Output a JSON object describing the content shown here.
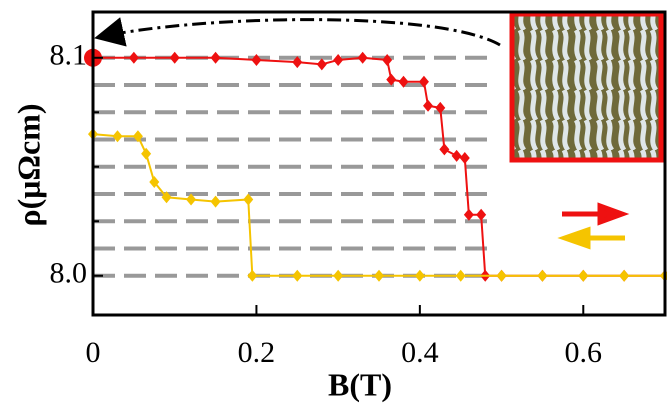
{
  "chart_data": {
    "type": "line",
    "x_label": "B(T)",
    "y_label": "ρ(μΩcm)",
    "xlim": [
      0,
      0.7
    ],
    "ylim": [
      7.982,
      8.121
    ],
    "xticks": [
      0,
      0.2,
      0.4,
      0.6
    ],
    "yticks": [
      {
        "value": 8,
        "label": "8.0"
      },
      {
        "value": 8.1,
        "label": "8.1"
      }
    ],
    "yminor_ticks": [
      8.025,
      8.05,
      8.075
    ],
    "levels": [
      8.0,
      8.0125,
      8.025,
      8.0375,
      8.05,
      8.0625,
      8.075,
      8.0875,
      8.1
    ],
    "levels_x": [
      0,
      0.49
    ],
    "levels_color": "#999999",
    "series": [
      {
        "color": "#ee1111",
        "x": [
          0,
          0.05,
          0.1,
          0.15,
          0.2,
          0.25,
          0.28,
          0.3,
          0.33,
          0.36,
          0.365,
          0.38,
          0.405,
          0.41,
          0.425,
          0.43,
          0.445,
          0.455,
          0.46,
          0.475,
          0.48,
          0.5,
          0.55,
          0.6,
          0.65,
          0.7
        ],
        "values": [
          8.1,
          8.1,
          8.1,
          8.1,
          8.099,
          8.098,
          8.097,
          8.099,
          8.1,
          8.099,
          8.09,
          8.089,
          8.089,
          8.078,
          8.077,
          8.058,
          8.055,
          8.054,
          8.028,
          8.028,
          8.0,
          8.0,
          8.0,
          8.0,
          8.0,
          8.0
        ]
      },
      {
        "color": "#f5c400",
        "x": [
          0,
          0.03,
          0.055,
          0.065,
          0.075,
          0.09,
          0.12,
          0.15,
          0.19,
          0.195,
          0.25,
          0.3,
          0.35,
          0.4,
          0.45,
          0.5,
          0.55,
          0.6,
          0.65,
          0.7
        ],
        "values": [
          8.065,
          8.064,
          8.064,
          8.056,
          8.043,
          8.036,
          8.035,
          8.034,
          8.035,
          8.0,
          8.0,
          8.0,
          8.0,
          8.0,
          8.0,
          8.0,
          8.0,
          8.0,
          8.0,
          8.0
        ]
      }
    ]
  }
}
